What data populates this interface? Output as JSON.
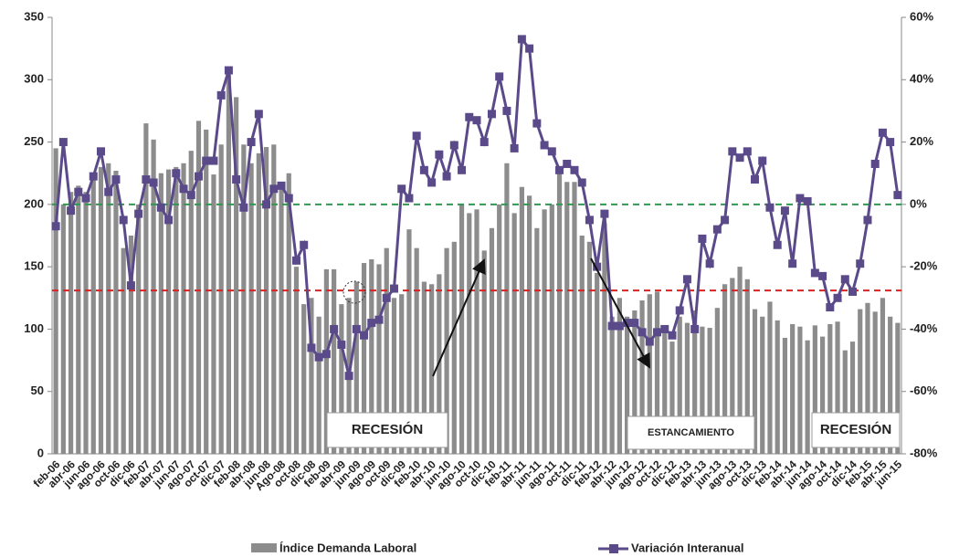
{
  "chart_data": {
    "type": "bar-line",
    "categories": [
      "feb-06",
      null,
      "abr-06",
      null,
      "jun-06",
      null,
      "ago-06",
      null,
      "oct-06",
      null,
      "dic-06",
      null,
      "feb-07",
      null,
      "abr-07",
      null,
      "jun-07",
      null,
      "ago-07",
      null,
      "oct-07",
      null,
      "dic-07",
      null,
      "feb-08",
      null,
      "abr-08",
      null,
      "jun-08",
      null,
      "Ago-08",
      null,
      "oct-08",
      null,
      "dic-08",
      null,
      "feb-09",
      null,
      "abr-09",
      null,
      "jun-09",
      null,
      "ago-09",
      null,
      "oct-09",
      null,
      "dic-09",
      null,
      "feb-10",
      null,
      "abr-10",
      null,
      "jun-10",
      null,
      "ago-10",
      null,
      "oct-10",
      null,
      "dic-10",
      null,
      "feb-11",
      null,
      "abr-11",
      null,
      "jun-11",
      null,
      "ago-11",
      null,
      "oct-11",
      null,
      "dic-11",
      null,
      "feb-12",
      null,
      "abr-12",
      null,
      "jun-12",
      null,
      "ago-12",
      null,
      "oct-12",
      null,
      "dic-12",
      null,
      "feb-13",
      null,
      "abr-13",
      null,
      "jun-13",
      null,
      "ago-13",
      null,
      "oct-13",
      null,
      "dic-13",
      null,
      "feb-14",
      null,
      "abr-14",
      null,
      "jun-14",
      null,
      "ago-14",
      null,
      "oct-14",
      null,
      "dic-14",
      null,
      "feb-15",
      null,
      "abr-15",
      null,
      "jun-15"
    ],
    "series": [
      {
        "name": "Índice Demanda Laboral",
        "color": "#8c8c8c",
        "values": [
          245,
          200,
          210,
          215,
          210,
          225,
          230,
          233,
          227,
          165,
          175,
          200,
          265,
          252,
          225,
          228,
          230,
          233,
          243,
          267,
          260,
          224,
          248,
          304,
          286,
          248,
          233,
          241,
          246,
          248,
          217,
          225,
          150,
          120,
          125,
          110,
          148,
          148,
          120,
          125,
          138,
          153,
          156,
          152,
          165,
          125,
          128,
          180,
          165,
          138,
          136,
          144,
          165,
          170,
          200,
          193,
          196,
          163,
          181,
          200,
          233,
          193,
          214,
          207,
          181,
          196,
          200,
          230,
          218,
          218,
          175,
          170,
          145,
          185,
          110,
          125,
          110,
          115,
          123,
          128,
          130,
          100,
          90,
          110,
          105,
          115,
          102,
          101,
          117,
          136,
          141,
          150,
          140,
          116,
          110,
          122,
          107,
          93,
          104,
          102,
          91,
          103,
          94,
          104,
          106,
          83,
          90,
          116,
          121,
          114,
          125,
          110,
          105
        ]
      },
      {
        "name": "Variación Interanual",
        "color": "#5b4a8a",
        "axis": "y2",
        "values": [
          -7,
          20,
          -2,
          4,
          2,
          9,
          17,
          4,
          8,
          -5,
          -26,
          -3,
          8,
          7,
          -1,
          -5,
          10,
          5,
          3,
          9,
          14,
          14,
          35,
          43,
          8,
          -1,
          20,
          29,
          0,
          5,
          6,
          2,
          -18,
          -13,
          -46,
          -49,
          -48,
          -40,
          -45,
          -55,
          -40,
          -42,
          -38,
          -37,
          -30,
          -27,
          5,
          2,
          22,
          11,
          7,
          16,
          9,
          19,
          11,
          28,
          27,
          20,
          29,
          41,
          30,
          18,
          53,
          50,
          26,
          19,
          17,
          11,
          13,
          11,
          7,
          -5,
          -20,
          -3,
          -39,
          -39,
          -38,
          -38,
          -41,
          -44,
          -41,
          -40,
          -42,
          -34,
          -24,
          -40,
          -11,
          -19,
          -8,
          -5,
          17,
          15,
          17,
          8,
          14,
          -1,
          -13,
          -2,
          -19,
          2,
          1,
          -22,
          -23,
          -33,
          -30,
          -24,
          -28,
          -19,
          -5,
          13,
          23,
          20,
          3
        ]
      }
    ],
    "ylim": [
      0,
      350
    ],
    "yticks": [
      0,
      50,
      100,
      150,
      200,
      250,
      300,
      350
    ],
    "y2lim": [
      -80,
      60
    ],
    "y2ticks": [
      {
        "value": -80,
        "label": "-80%"
      },
      {
        "value": -60,
        "label": "-60%"
      },
      {
        "value": -40,
        "label": "-40%"
      },
      {
        "value": -20,
        "label": "-20%"
      },
      {
        "value": 0,
        "label": "0%"
      },
      {
        "value": 20,
        "label": "20%"
      },
      {
        "value": 40,
        "label": "40%"
      },
      {
        "value": 60,
        "label": "60%"
      }
    ],
    "reference_lines": [
      {
        "axis": "y2",
        "value": 0,
        "color": "#2e9a4e"
      },
      {
        "axis": "y",
        "value": 131,
        "color": "#e02020"
      }
    ],
    "annotations": [
      "RECESIÓN",
      "ESTANCAMIENTO",
      "RECESIÓN"
    ],
    "grid": false
  }
}
